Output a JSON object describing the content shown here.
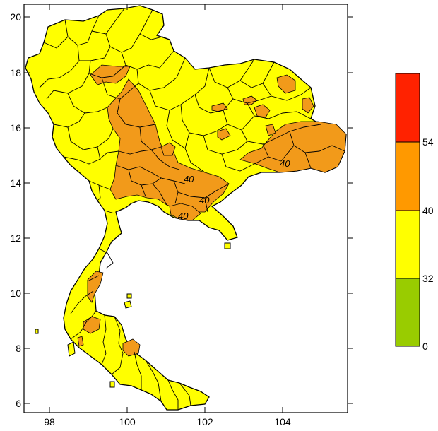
{
  "axes": {
    "x_ticks": [
      "98",
      "100",
      "102",
      "104"
    ],
    "y_ticks": [
      "20",
      "18",
      "16",
      "14",
      "12",
      "10",
      "8",
      "6"
    ]
  },
  "contour_labels": [
    "40",
    "40",
    "40",
    "40"
  ],
  "legend": {
    "bands": [
      {
        "label": "0",
        "color": "#99cc00"
      },
      {
        "label": "32",
        "color": "#ffff00"
      },
      {
        "label": "40",
        "color": "#ff9900"
      },
      {
        "label": "54",
        "color": "#ff2200"
      }
    ]
  },
  "colors": {
    "land": "#ffff00",
    "hot_zone": "#f29a1a",
    "border": "#000000"
  }
}
